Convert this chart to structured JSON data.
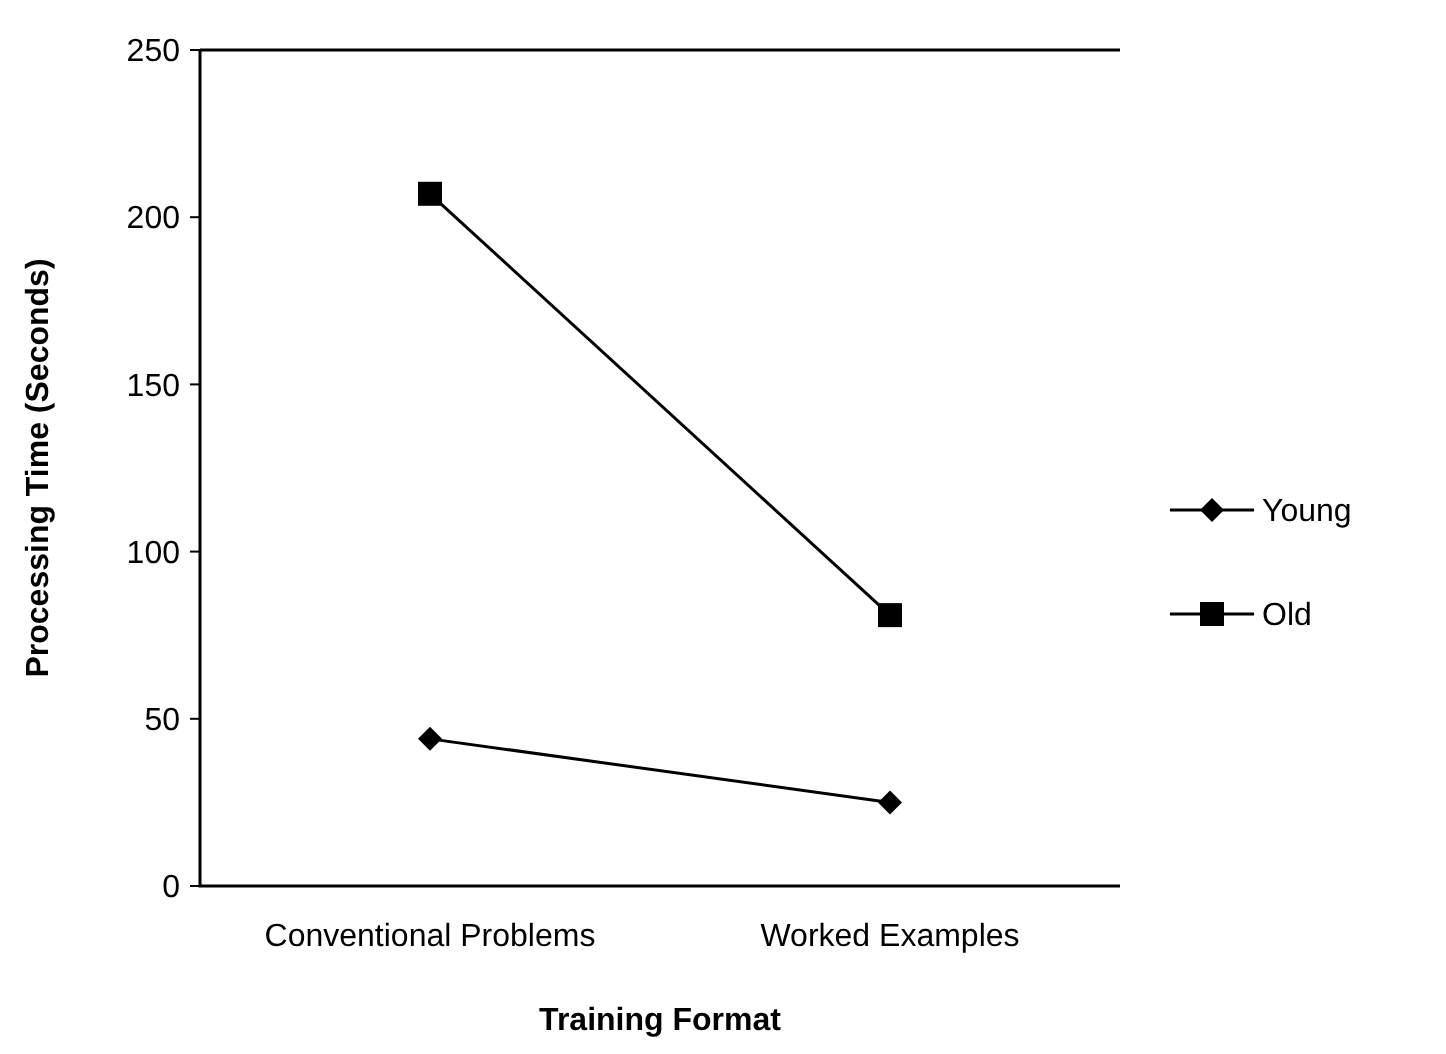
{
  "chart_data": {
    "type": "line",
    "xlabel": "Training Format",
    "ylabel": "Processing Time (Seconds)",
    "categories": [
      "Conventional Problems",
      "Worked Examples"
    ],
    "ylim": [
      0,
      250
    ],
    "yticks": [
      0,
      50,
      100,
      150,
      200,
      250
    ],
    "grid": false,
    "legend": "right",
    "line_style": "solid",
    "series": [
      {
        "name": "Young",
        "color": "#000000",
        "marker": "diamond",
        "values": [
          44,
          25
        ]
      },
      {
        "name": "Old",
        "color": "#000000",
        "marker": "square",
        "values": [
          207,
          81
        ]
      }
    ]
  }
}
